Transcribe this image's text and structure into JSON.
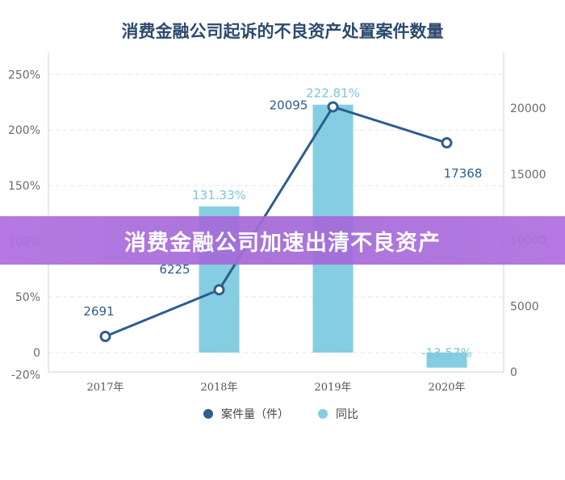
{
  "banner": {
    "text": "消费金融公司加速出清不良资产"
  },
  "colors": {
    "line": "#2e5d8e",
    "bar": "#85cde0",
    "axis": "#d0d0d0",
    "title": "#2c4a6e"
  },
  "chart_data": {
    "type": "bar+line",
    "title": "消费金融公司起诉的不良资产处置案件数量",
    "categories": [
      "2017年",
      "2018年",
      "2019年",
      "2020年"
    ],
    "series": [
      {
        "name": "案件量（件）",
        "type": "line",
        "axis": "right",
        "values": [
          2691,
          6225,
          20095,
          17368
        ],
        "labels": [
          "2691",
          "6225",
          "20095",
          "17368"
        ]
      },
      {
        "name": "同比",
        "type": "bar",
        "axis": "left",
        "values": [
          null,
          131.33,
          222.81,
          -13.57
        ],
        "labels": [
          "",
          "131.33%",
          "222.81%",
          "-13.57%"
        ]
      }
    ],
    "left_axis": {
      "ticks": [
        "250%",
        "200%",
        "150%",
        "100%",
        "50%",
        "0",
        "-20%"
      ],
      "tick_values": [
        250,
        200,
        150,
        100,
        50,
        0,
        -20
      ],
      "ylim": [
        -20,
        250
      ]
    },
    "right_axis": {
      "ticks": [
        "20000",
        "15000",
        "10000",
        "5000",
        "0"
      ],
      "tick_values": [
        20000,
        15000,
        10000,
        5000,
        0
      ]
    },
    "grid": true,
    "legend_position": "bottom"
  }
}
